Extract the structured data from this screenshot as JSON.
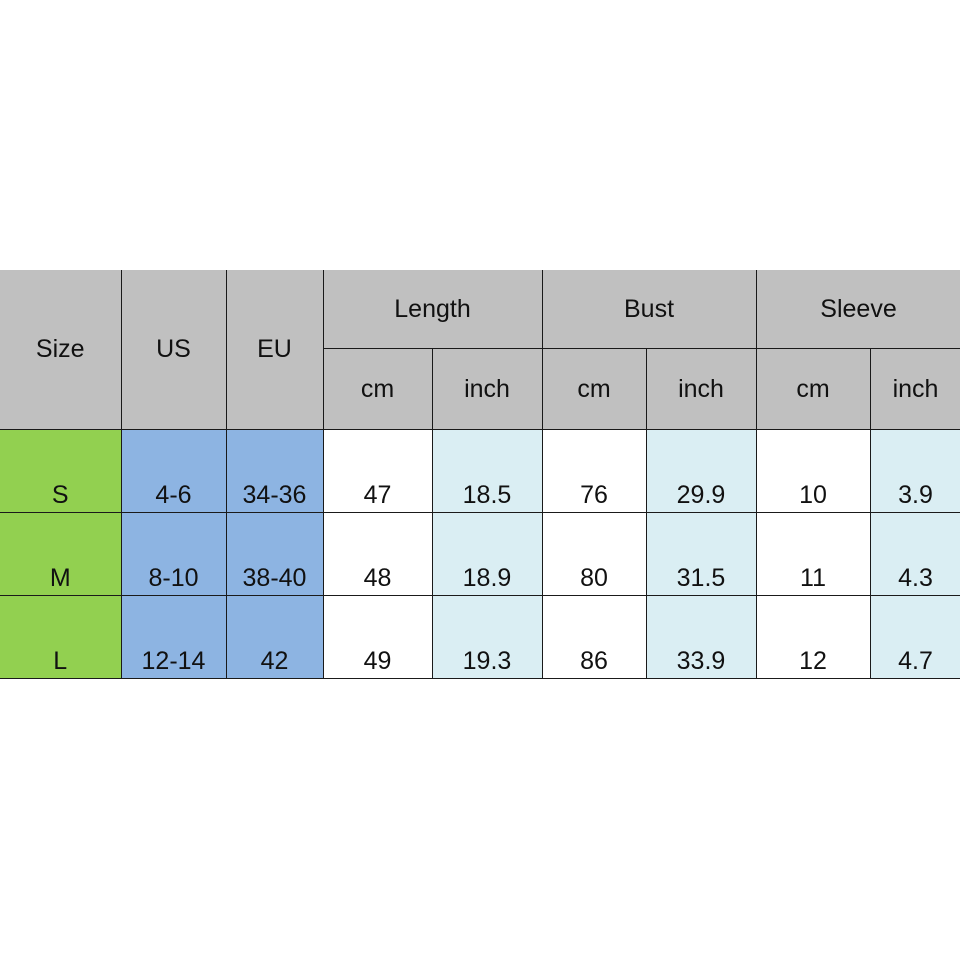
{
  "headers": {
    "size": "Size",
    "us": "US",
    "eu": "EU",
    "groups": [
      "Length",
      "Bust",
      "Sleeve"
    ],
    "units": [
      "cm",
      "inch",
      "cm",
      "inch",
      "cm",
      "inch"
    ]
  },
  "rows": [
    {
      "size": "S",
      "us": "4-6",
      "eu": "34-36",
      "values": [
        "47",
        "18.5",
        "76",
        "29.9",
        "10",
        "3.9"
      ]
    },
    {
      "size": "M",
      "us": "8-10",
      "eu": "38-40",
      "values": [
        "48",
        "18.9",
        "80",
        "31.5",
        "11",
        "4.3"
      ]
    },
    {
      "size": "L",
      "us": "12-14",
      "eu": "42",
      "values": [
        "49",
        "19.3",
        "86",
        "33.9",
        "12",
        "4.7"
      ]
    }
  ],
  "colors": {
    "header": "#c0c0c0",
    "size": "#92d050",
    "region": "#8db4e2",
    "inch": "#daeef3"
  }
}
